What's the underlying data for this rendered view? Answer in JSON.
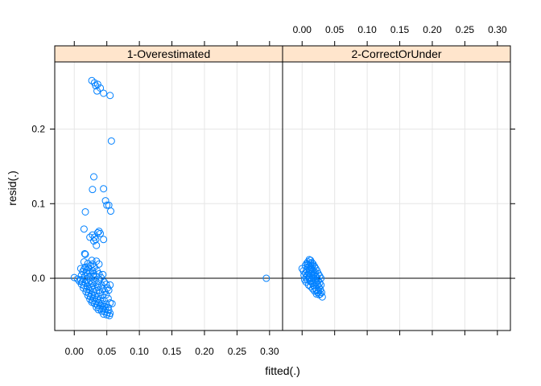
{
  "chart_data": {
    "type": "scatter",
    "layout": "trellis (lattice), two panels side by side",
    "xlabel": "fitted(.)",
    "ylabel": "resid(.)",
    "xlim": [
      -0.03,
      0.32
    ],
    "ylim": [
      -0.07,
      0.29
    ],
    "x_ticks": [
      "0.00",
      "0.05",
      "0.10",
      "0.15",
      "0.20",
      "0.25",
      "0.30"
    ],
    "y_ticks": [
      "0.0",
      "0.1",
      "0.2"
    ],
    "x_tick_values": [
      0,
      0.05,
      0.1,
      0.15,
      0.2,
      0.25,
      0.3
    ],
    "y_tick_values": [
      0,
      0.1,
      0.2
    ],
    "grid": true,
    "reference_line_y": 0,
    "strip_color": "#ffe5cc",
    "point_color": "#0080ff",
    "marker": "open circle",
    "panels": [
      {
        "name": "1-Overestimated",
        "x_axis_side": "bottom",
        "points": [
          [
            0.027,
            0.265
          ],
          [
            0.031,
            0.262
          ],
          [
            0.036,
            0.26
          ],
          [
            0.033,
            0.258
          ],
          [
            0.04,
            0.255
          ],
          [
            0.035,
            0.251
          ],
          [
            0.045,
            0.248
          ],
          [
            0.055,
            0.245
          ],
          [
            0.057,
            0.184
          ],
          [
            0.03,
            0.136
          ],
          [
            0.045,
            0.12
          ],
          [
            0.028,
            0.119
          ],
          [
            0.048,
            0.104
          ],
          [
            0.05,
            0.098
          ],
          [
            0.053,
            0.098
          ],
          [
            0.056,
            0.09
          ],
          [
            0.017,
            0.089
          ],
          [
            0.015,
            0.066
          ],
          [
            0.038,
            0.063
          ],
          [
            0.036,
            0.061
          ],
          [
            0.04,
            0.06
          ],
          [
            0.028,
            0.058
          ],
          [
            0.031,
            0.055
          ],
          [
            0.024,
            0.055
          ],
          [
            0.033,
            0.052
          ],
          [
            0.045,
            0.052
          ],
          [
            0.03,
            0.05
          ],
          [
            0.034,
            0.044
          ],
          [
            0.016,
            0.033
          ],
          [
            0.017,
            0.032
          ],
          [
            0.027,
            0.024
          ],
          [
            0.034,
            0.023
          ],
          [
            0.015,
            0.022
          ],
          [
            0.021,
            0.02
          ],
          [
            0.028,
            0.019
          ],
          [
            0.038,
            0.019
          ],
          [
            0.025,
            0.017
          ],
          [
            0.031,
            0.015
          ],
          [
            0.017,
            0.015
          ],
          [
            0.022,
            0.014
          ],
          [
            0.01,
            0.013
          ],
          [
            0.015,
            0.012
          ],
          [
            0.02,
            0.011
          ],
          [
            0.028,
            0.01
          ],
          [
            0.035,
            0.01
          ],
          [
            0.013,
            0.009
          ],
          [
            0.019,
            0.008
          ],
          [
            0.024,
            0.007
          ],
          [
            0.03,
            0.006
          ],
          [
            0.038,
            0.006
          ],
          [
            0.044,
            0.005
          ],
          [
            0.011,
            0.004
          ],
          [
            0.016,
            0.003
          ],
          [
            0.023,
            0.002
          ],
          [
            0.029,
            0.003
          ],
          [
            0.034,
            0.002
          ],
          [
            0.041,
            0.001
          ],
          [
            0.0,
            0.001
          ],
          [
            0.005,
            -0.001
          ],
          [
            0.01,
            -0.002
          ],
          [
            0.014,
            -0.001
          ],
          [
            0.019,
            -0.002
          ],
          [
            0.025,
            -0.003
          ],
          [
            0.032,
            -0.003
          ],
          [
            0.038,
            -0.004
          ],
          [
            0.046,
            -0.005
          ],
          [
            0.008,
            -0.004
          ],
          [
            0.012,
            -0.005
          ],
          [
            0.017,
            -0.006
          ],
          [
            0.022,
            -0.006
          ],
          [
            0.028,
            -0.007
          ],
          [
            0.035,
            -0.008
          ],
          [
            0.042,
            -0.009
          ],
          [
            0.049,
            -0.008
          ],
          [
            0.055,
            -0.009
          ],
          [
            0.011,
            -0.008
          ],
          [
            0.015,
            -0.01
          ],
          [
            0.02,
            -0.011
          ],
          [
            0.026,
            -0.012
          ],
          [
            0.031,
            -0.013
          ],
          [
            0.037,
            -0.012
          ],
          [
            0.044,
            -0.014
          ],
          [
            0.051,
            -0.013
          ],
          [
            0.014,
            -0.013
          ],
          [
            0.019,
            -0.015
          ],
          [
            0.024,
            -0.016
          ],
          [
            0.029,
            -0.018
          ],
          [
            0.034,
            -0.017
          ],
          [
            0.04,
            -0.019
          ],
          [
            0.047,
            -0.018
          ],
          [
            0.053,
            -0.016
          ],
          [
            0.018,
            -0.018
          ],
          [
            0.022,
            -0.02
          ],
          [
            0.027,
            -0.022
          ],
          [
            0.032,
            -0.023
          ],
          [
            0.037,
            -0.024
          ],
          [
            0.043,
            -0.023
          ],
          [
            0.049,
            -0.022
          ],
          [
            0.021,
            -0.023
          ],
          [
            0.025,
            -0.025
          ],
          [
            0.03,
            -0.027
          ],
          [
            0.035,
            -0.028
          ],
          [
            0.04,
            -0.029
          ],
          [
            0.046,
            -0.03
          ],
          [
            0.052,
            -0.027
          ],
          [
            0.024,
            -0.028
          ],
          [
            0.028,
            -0.03
          ],
          [
            0.033,
            -0.031
          ],
          [
            0.038,
            -0.033
          ],
          [
            0.043,
            -0.034
          ],
          [
            0.049,
            -0.035
          ],
          [
            0.055,
            -0.033
          ],
          [
            0.027,
            -0.032
          ],
          [
            0.031,
            -0.034
          ],
          [
            0.036,
            -0.036
          ],
          [
            0.041,
            -0.037
          ],
          [
            0.046,
            -0.038
          ],
          [
            0.052,
            -0.039
          ],
          [
            0.058,
            -0.034
          ],
          [
            0.034,
            -0.039
          ],
          [
            0.039,
            -0.04
          ],
          [
            0.044,
            -0.041
          ],
          [
            0.048,
            -0.042
          ],
          [
            0.053,
            -0.043
          ],
          [
            0.037,
            -0.042
          ],
          [
            0.042,
            -0.044
          ],
          [
            0.047,
            -0.045
          ],
          [
            0.051,
            -0.046
          ],
          [
            0.045,
            -0.048
          ],
          [
            0.05,
            -0.049
          ],
          [
            0.054,
            -0.05
          ],
          [
            0.055,
            -0.047
          ],
          [
            0.295,
            0.0
          ]
        ]
      },
      {
        "name": "2-CorrectOrUnder",
        "x_axis_side": "top",
        "points": [
          [
            0.0,
            0.013
          ],
          [
            0.002,
            0.01
          ],
          [
            0.005,
            0.017
          ],
          [
            0.007,
            0.02
          ],
          [
            0.009,
            0.022
          ],
          [
            0.011,
            0.025
          ],
          [
            0.013,
            0.024
          ],
          [
            0.015,
            0.021
          ],
          [
            0.017,
            0.019
          ],
          [
            0.019,
            0.016
          ],
          [
            0.021,
            0.013
          ],
          [
            0.023,
            0.01
          ],
          [
            0.025,
            0.006
          ],
          [
            0.027,
            0.003
          ],
          [
            0.029,
            0.0
          ],
          [
            0.003,
            0.004
          ],
          [
            0.005,
            0.007
          ],
          [
            0.007,
            0.011
          ],
          [
            0.009,
            0.014
          ],
          [
            0.011,
            0.017
          ],
          [
            0.013,
            0.015
          ],
          [
            0.015,
            0.012
          ],
          [
            0.017,
            0.009
          ],
          [
            0.019,
            0.006
          ],
          [
            0.021,
            0.003
          ],
          [
            0.023,
            0.0
          ],
          [
            0.025,
            -0.003
          ],
          [
            0.027,
            -0.006
          ],
          [
            0.029,
            -0.009
          ],
          [
            0.004,
            -0.002
          ],
          [
            0.006,
            0.001
          ],
          [
            0.008,
            0.004
          ],
          [
            0.01,
            0.007
          ],
          [
            0.012,
            0.01
          ],
          [
            0.014,
            0.006
          ],
          [
            0.016,
            0.003
          ],
          [
            0.018,
            0.0
          ],
          [
            0.02,
            -0.003
          ],
          [
            0.022,
            -0.006
          ],
          [
            0.024,
            -0.009
          ],
          [
            0.026,
            -0.012
          ],
          [
            0.028,
            -0.015
          ],
          [
            0.03,
            -0.019
          ],
          [
            0.006,
            -0.005
          ],
          [
            0.008,
            -0.002
          ],
          [
            0.01,
            0.001
          ],
          [
            0.012,
            -0.001
          ],
          [
            0.014,
            -0.004
          ],
          [
            0.016,
            -0.007
          ],
          [
            0.018,
            -0.01
          ],
          [
            0.02,
            -0.013
          ],
          [
            0.022,
            -0.016
          ],
          [
            0.024,
            -0.019
          ],
          [
            0.026,
            -0.022
          ],
          [
            0.028,
            -0.021
          ],
          [
            0.031,
            -0.025
          ],
          [
            0.01,
            -0.009
          ],
          [
            0.013,
            -0.011
          ],
          [
            0.016,
            -0.014
          ],
          [
            0.019,
            -0.017
          ],
          [
            0.022,
            -0.021
          ],
          [
            0.025,
            -0.017
          ],
          [
            0.012,
            -0.004
          ],
          [
            0.015,
            0.0
          ],
          [
            0.018,
            0.004
          ],
          [
            0.009,
            0.019
          ],
          [
            0.013,
            0.02
          ],
          [
            0.016,
            0.017
          ],
          [
            0.011,
            0.012
          ],
          [
            0.02,
            0.008
          ]
        ]
      }
    ]
  }
}
